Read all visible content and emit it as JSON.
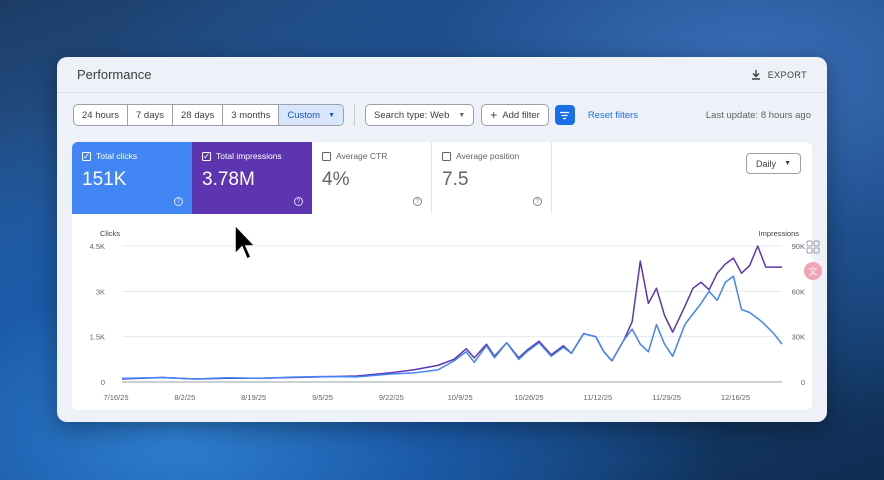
{
  "header": {
    "title": "Performance",
    "export_label": "EXPORT"
  },
  "toolbar": {
    "ranges": [
      "24 hours",
      "7 days",
      "28 days",
      "3 months"
    ],
    "custom_label": "Custom",
    "search_type": "Search type: Web",
    "add_filter": "Add filter",
    "reset": "Reset filters",
    "last_update": "Last update: 8 hours ago"
  },
  "metrics": {
    "clicks": {
      "label": "Total clicks",
      "value": "151K",
      "checked": true
    },
    "impressions": {
      "label": "Total impressions",
      "value": "3.78M",
      "checked": true
    },
    "ctr": {
      "label": "Average CTR",
      "value": "4%",
      "checked": false
    },
    "position": {
      "label": "Average position",
      "value": "7.5",
      "checked": false
    }
  },
  "granularity": "Daily",
  "colors": {
    "clicks": "#4285f4",
    "impressions": "#5e35b1",
    "accent": "#1a6fe8"
  },
  "chart_data": {
    "type": "line",
    "ylabel_left": "Clicks",
    "ylabel_right": "Impressions",
    "y_ticks_left": [
      "0",
      "1.5K",
      "3K",
      "4.5K"
    ],
    "y_ticks_right": [
      "0",
      "30K",
      "60K",
      "90K"
    ],
    "ylim_left": [
      0,
      4500
    ],
    "ylim_right": [
      0,
      90000
    ],
    "x_ticks": [
      "7/16/25",
      "8/2/25",
      "8/19/25",
      "9/5/25",
      "9/22/25",
      "10/9/25",
      "10/26/25",
      "11/12/25",
      "11/29/25",
      "12/16/25"
    ],
    "x_tick_index": [
      0,
      17,
      34,
      51,
      68,
      85,
      102,
      119,
      136,
      153
    ],
    "series": [
      {
        "name": "Clicks",
        "axis": "left",
        "points": [
          [
            0,
            120
          ],
          [
            10,
            150
          ],
          [
            18,
            100
          ],
          [
            26,
            140
          ],
          [
            34,
            120
          ],
          [
            42,
            160
          ],
          [
            50,
            180
          ],
          [
            58,
            170
          ],
          [
            66,
            260
          ],
          [
            72,
            300
          ],
          [
            78,
            400
          ],
          [
            82,
            700
          ],
          [
            85,
            1000
          ],
          [
            87,
            650
          ],
          [
            90,
            1200
          ],
          [
            92,
            800
          ],
          [
            95,
            1300
          ],
          [
            98,
            750
          ],
          [
            100,
            1000
          ],
          [
            103,
            1300
          ],
          [
            106,
            850
          ],
          [
            109,
            1150
          ],
          [
            111,
            950
          ],
          [
            114,
            1600
          ],
          [
            117,
            1500
          ],
          [
            119,
            1000
          ],
          [
            121,
            700
          ],
          [
            124,
            1400
          ],
          [
            126,
            1750
          ],
          [
            128,
            1250
          ],
          [
            130,
            1000
          ],
          [
            132,
            1900
          ],
          [
            134,
            1250
          ],
          [
            136,
            850
          ],
          [
            139,
            1900
          ],
          [
            141,
            2250
          ],
          [
            143,
            2600
          ],
          [
            145,
            3000
          ],
          [
            147,
            2700
          ],
          [
            149,
            3300
          ],
          [
            151,
            3500
          ],
          [
            153,
            2400
          ],
          [
            155,
            2300
          ],
          [
            158,
            2000
          ],
          [
            161,
            1600
          ],
          [
            163,
            1250
          ]
        ]
      },
      {
        "name": "Impressions",
        "axis": "right",
        "points": [
          [
            0,
            2000
          ],
          [
            10,
            3000
          ],
          [
            18,
            2000
          ],
          [
            26,
            2500
          ],
          [
            34,
            2500
          ],
          [
            42,
            3000
          ],
          [
            50,
            3500
          ],
          [
            58,
            4000
          ],
          [
            66,
            6000
          ],
          [
            72,
            8000
          ],
          [
            78,
            11000
          ],
          [
            82,
            15000
          ],
          [
            85,
            22000
          ],
          [
            87,
            16000
          ],
          [
            90,
            25000
          ],
          [
            92,
            17000
          ],
          [
            95,
            26000
          ],
          [
            98,
            16000
          ],
          [
            100,
            21000
          ],
          [
            103,
            27000
          ],
          [
            106,
            18000
          ],
          [
            109,
            24000
          ],
          [
            111,
            19000
          ],
          [
            114,
            32000
          ],
          [
            117,
            30000
          ],
          [
            119,
            20000
          ],
          [
            121,
            14000
          ],
          [
            124,
            28000
          ],
          [
            126,
            40000
          ],
          [
            128,
            80000
          ],
          [
            130,
            52000
          ],
          [
            132,
            62000
          ],
          [
            134,
            44000
          ],
          [
            136,
            33000
          ],
          [
            139,
            50000
          ],
          [
            141,
            62000
          ],
          [
            143,
            66000
          ],
          [
            145,
            61000
          ],
          [
            147,
            72000
          ],
          [
            149,
            78000
          ],
          [
            151,
            82000
          ],
          [
            153,
            72000
          ],
          [
            155,
            77000
          ],
          [
            157,
            90000
          ],
          [
            159,
            76000
          ],
          [
            163,
            76000
          ]
        ]
      }
    ]
  }
}
